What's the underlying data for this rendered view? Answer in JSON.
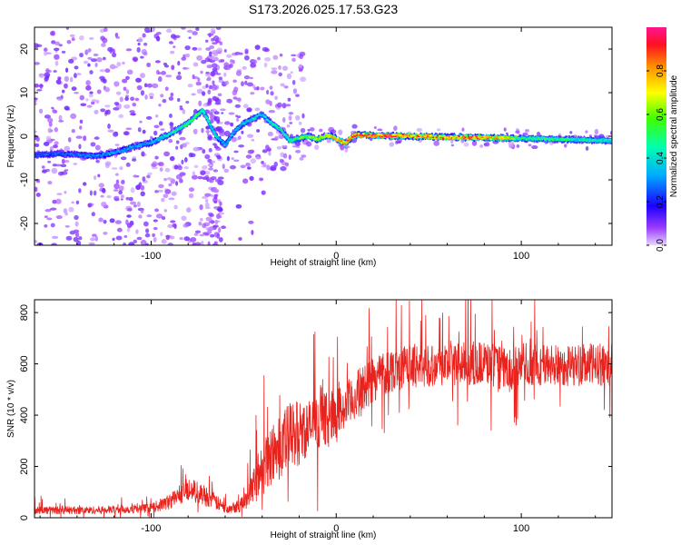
{
  "title": "S173.2026.025.17.53.G23",
  "chart_data": [
    {
      "type": "heatmap",
      "name": "spectrogram",
      "xlabel": "Height of straight line (km)",
      "ylabel": "Frequency (Hz)",
      "xlim": [
        -163,
        149
      ],
      "ylim": [
        -25,
        25
      ],
      "xticks": [
        -100,
        0,
        100
      ],
      "yticks": [
        -20,
        -10,
        0,
        10,
        20
      ],
      "colorbar": {
        "label": "Normalized spectral amplitude",
        "range": [
          0,
          1
        ],
        "ticks": [
          "0.0",
          "0.2",
          "0.4",
          "0.6",
          "0.8"
        ],
        "tick_values": [
          0.0,
          0.2,
          0.4,
          0.6,
          0.8
        ],
        "colormap": [
          "#e6d6ff",
          "#7f00ff",
          "#1b00ff",
          "#00c8ff",
          "#00ff90",
          "#7fff00",
          "#ffff00",
          "#ff8000",
          "#ff0030",
          "#ff1493"
        ]
      },
      "ridge": [
        {
          "x": -163,
          "f": -4.3
        },
        {
          "x": -150,
          "f": -4.0
        },
        {
          "x": -140,
          "f": -4.2
        },
        {
          "x": -130,
          "f": -4.6
        },
        {
          "x": -120,
          "f": -3.8
        },
        {
          "x": -110,
          "f": -2.5
        },
        {
          "x": -100,
          "f": -1.5
        },
        {
          "x": -90,
          "f": 0.5
        },
        {
          "x": -80,
          "f": 3.0
        },
        {
          "x": -72,
          "f": 6.0
        },
        {
          "x": -65,
          "f": 0.0
        },
        {
          "x": -60,
          "f": -2.0
        },
        {
          "x": -55,
          "f": 1.0
        },
        {
          "x": -50,
          "f": 3.0
        },
        {
          "x": -45,
          "f": 4.0
        },
        {
          "x": -40,
          "f": 5.0
        },
        {
          "x": -35,
          "f": 3.0
        },
        {
          "x": -30,
          "f": 1.5
        },
        {
          "x": -25,
          "f": -1.0
        },
        {
          "x": -20,
          "f": -0.5
        },
        {
          "x": -15,
          "f": 0.0
        },
        {
          "x": -10,
          "f": -0.8
        },
        {
          "x": -5,
          "f": 0.3
        },
        {
          "x": 0,
          "f": -0.5
        },
        {
          "x": 5,
          "f": -1.6
        },
        {
          "x": 10,
          "f": 0.3
        },
        {
          "x": 20,
          "f": 0.2
        },
        {
          "x": 40,
          "f": 0.0
        },
        {
          "x": 60,
          "f": -0.2
        },
        {
          "x": 80,
          "f": -0.3
        },
        {
          "x": 100,
          "f": -0.5
        },
        {
          "x": 120,
          "f": -0.7
        },
        {
          "x": 140,
          "f": -0.9
        },
        {
          "x": 149,
          "f": -1.0
        }
      ],
      "ridge_amplitude": [
        {
          "x": -163,
          "a": 0.25
        },
        {
          "x": -100,
          "a": 0.35
        },
        {
          "x": -75,
          "a": 0.55
        },
        {
          "x": -60,
          "a": 0.35
        },
        {
          "x": -30,
          "a": 0.45
        },
        {
          "x": 0,
          "a": 0.75
        },
        {
          "x": 10,
          "a": 0.95
        },
        {
          "x": 40,
          "a": 0.85
        },
        {
          "x": 90,
          "a": 0.8
        },
        {
          "x": 100,
          "a": 0.5
        },
        {
          "x": 149,
          "a": 0.45
        }
      ]
    },
    {
      "type": "line",
      "name": "snr",
      "xlabel": "Height of straight line (km)",
      "ylabel": "SNR (10 * v/v)",
      "xlim": [
        -163,
        149
      ],
      "ylim": [
        0,
        850
      ],
      "xticks": [
        -100,
        0,
        100
      ],
      "yticks": [
        0,
        200,
        400,
        600,
        800
      ],
      "series_color": "#e8231e",
      "envelope": [
        {
          "x": -163,
          "base": 28,
          "spread": 30
        },
        {
          "x": -130,
          "base": 28,
          "spread": 30
        },
        {
          "x": -100,
          "base": 35,
          "spread": 35
        },
        {
          "x": -90,
          "base": 60,
          "spread": 60
        },
        {
          "x": -80,
          "base": 110,
          "spread": 90
        },
        {
          "x": -70,
          "base": 80,
          "spread": 80
        },
        {
          "x": -60,
          "base": 35,
          "spread": 40
        },
        {
          "x": -50,
          "base": 50,
          "spread": 60
        },
        {
          "x": -45,
          "base": 130,
          "spread": 150
        },
        {
          "x": -35,
          "base": 230,
          "spread": 250
        },
        {
          "x": -25,
          "base": 300,
          "spread": 280
        },
        {
          "x": -15,
          "base": 340,
          "spread": 220
        },
        {
          "x": -5,
          "base": 380,
          "spread": 200
        },
        {
          "x": 5,
          "base": 420,
          "spread": 190
        },
        {
          "x": 15,
          "base": 500,
          "spread": 190
        },
        {
          "x": 25,
          "base": 560,
          "spread": 180
        },
        {
          "x": 40,
          "base": 585,
          "spread": 170
        },
        {
          "x": 60,
          "base": 590,
          "spread": 170
        },
        {
          "x": 80,
          "base": 595,
          "spread": 170
        },
        {
          "x": 95,
          "base": 560,
          "spread": 170
        },
        {
          "x": 100,
          "base": 590,
          "spread": 170
        },
        {
          "x": 120,
          "base": 585,
          "spread": 165
        },
        {
          "x": 149,
          "base": 590,
          "spread": 165
        }
      ]
    }
  ]
}
